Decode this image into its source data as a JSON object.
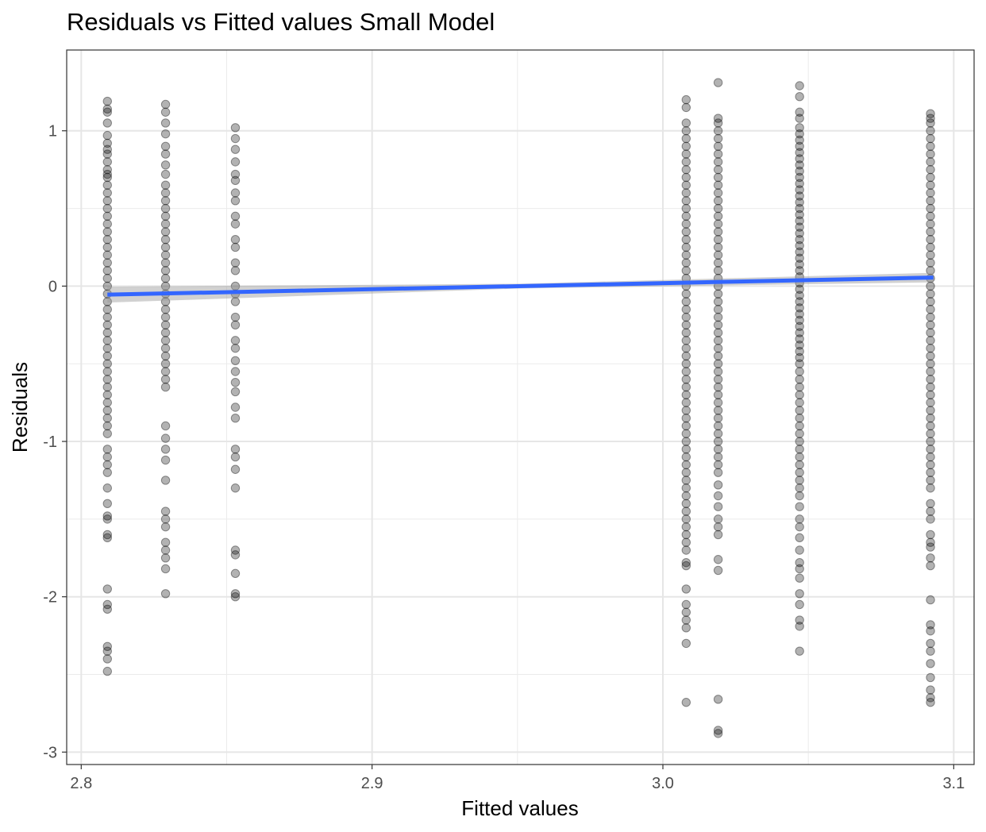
{
  "chart_data": {
    "type": "scatter",
    "title": "Residuals vs Fitted values Small Model",
    "xlabel": "Fitted values",
    "ylabel": "Residuals",
    "xlim": [
      2.795,
      3.107
    ],
    "ylim": [
      -3.08,
      1.52
    ],
    "x_ticks": [
      2.8,
      2.9,
      3.0,
      3.1
    ],
    "x_tick_labels": [
      "2.8",
      "2.9",
      "3.0",
      "3.1"
    ],
    "y_ticks": [
      -3,
      -2,
      -1,
      0,
      1
    ],
    "y_tick_labels": [
      "-3",
      "-2",
      "-1",
      "0",
      "1"
    ],
    "grid": true,
    "legend": "none",
    "point_color": "#000000",
    "point_alpha": 0.3,
    "fit_line_color": "#3366ff",
    "fit_band_color": "#999999",
    "fit_line": {
      "x": [
        2.809,
        3.093
      ],
      "y": [
        -0.055,
        0.055
      ]
    },
    "groups": [
      {
        "x": 2.809,
        "y": [
          1.19,
          1.14,
          1.12,
          1.05,
          0.97,
          0.92,
          0.88,
          0.85,
          0.8,
          0.75,
          0.72,
          0.7,
          0.65,
          0.6,
          0.55,
          0.5,
          0.45,
          0.4,
          0.35,
          0.3,
          0.25,
          0.2,
          0.15,
          0.1,
          0.05,
          0.0,
          -0.05,
          -0.1,
          -0.15,
          -0.2,
          -0.25,
          -0.3,
          -0.35,
          -0.4,
          -0.45,
          -0.5,
          -0.55,
          -0.6,
          -0.65,
          -0.7,
          -0.75,
          -0.8,
          -0.85,
          -0.9,
          -0.95,
          -1.05,
          -1.1,
          -1.15,
          -1.2,
          -1.3,
          -1.4,
          -1.48,
          -1.5,
          -1.6,
          -1.62,
          -1.95,
          -2.05,
          -2.08,
          -2.32,
          -2.35,
          -2.4,
          -2.48
        ]
      },
      {
        "x": 2.829,
        "y": [
          1.17,
          1.12,
          1.05,
          0.98,
          0.9,
          0.85,
          0.78,
          0.72,
          0.65,
          0.6,
          0.55,
          0.5,
          0.45,
          0.4,
          0.35,
          0.3,
          0.25,
          0.2,
          0.15,
          0.1,
          0.05,
          0.0,
          -0.05,
          -0.1,
          -0.15,
          -0.2,
          -0.25,
          -0.3,
          -0.35,
          -0.4,
          -0.45,
          -0.5,
          -0.55,
          -0.6,
          -0.65,
          -0.9,
          -0.98,
          -1.05,
          -1.12,
          -1.25,
          -1.45,
          -1.5,
          -1.55,
          -1.65,
          -1.7,
          -1.75,
          -1.82,
          -1.98
        ]
      },
      {
        "x": 2.853,
        "y": [
          1.02,
          0.95,
          0.88,
          0.8,
          0.72,
          0.68,
          0.6,
          0.55,
          0.45,
          0.4,
          0.3,
          0.25,
          0.15,
          0.1,
          0.0,
          -0.05,
          -0.1,
          -0.2,
          -0.25,
          -0.35,
          -0.4,
          -0.48,
          -0.55,
          -0.62,
          -0.68,
          -0.78,
          -0.85,
          -1.05,
          -1.1,
          -1.18,
          -1.3,
          -1.7,
          -1.73,
          -1.85,
          -1.98,
          -2.0
        ]
      },
      {
        "x": 3.008,
        "y": [
          1.2,
          1.15,
          1.05,
          1.0,
          0.95,
          0.9,
          0.85,
          0.8,
          0.75,
          0.7,
          0.65,
          0.6,
          0.55,
          0.5,
          0.45,
          0.4,
          0.35,
          0.3,
          0.25,
          0.2,
          0.15,
          0.1,
          0.05,
          0.0,
          -0.05,
          -0.1,
          -0.15,
          -0.2,
          -0.25,
          -0.3,
          -0.35,
          -0.4,
          -0.45,
          -0.5,
          -0.55,
          -0.6,
          -0.65,
          -0.7,
          -0.75,
          -0.8,
          -0.85,
          -0.9,
          -0.95,
          -1.0,
          -1.05,
          -1.1,
          -1.15,
          -1.2,
          -1.25,
          -1.3,
          -1.35,
          -1.4,
          -1.45,
          -1.5,
          -1.55,
          -1.6,
          -1.65,
          -1.7,
          -1.78,
          -1.8,
          -1.95,
          -2.05,
          -2.1,
          -2.15,
          -2.2,
          -2.3,
          -2.68
        ]
      },
      {
        "x": 3.019,
        "y": [
          1.31,
          1.08,
          1.05,
          1.0,
          0.95,
          0.9,
          0.85,
          0.8,
          0.75,
          0.7,
          0.65,
          0.6,
          0.55,
          0.5,
          0.45,
          0.4,
          0.35,
          0.3,
          0.25,
          0.2,
          0.15,
          0.1,
          0.05,
          0.0,
          -0.05,
          -0.1,
          -0.15,
          -0.2,
          -0.25,
          -0.3,
          -0.35,
          -0.4,
          -0.45,
          -0.5,
          -0.55,
          -0.6,
          -0.65,
          -0.7,
          -0.75,
          -0.8,
          -0.85,
          -0.9,
          -0.95,
          -1.0,
          -1.05,
          -1.1,
          -1.15,
          -1.2,
          -1.28,
          -1.35,
          -1.42,
          -1.5,
          -1.55,
          -1.6,
          -1.76,
          -1.83,
          -2.66,
          -2.86,
          -2.88
        ]
      },
      {
        "x": 3.047,
        "y": [
          1.29,
          1.22,
          1.12,
          1.08,
          1.02,
          0.98,
          0.94,
          0.9,
          0.86,
          0.82,
          0.78,
          0.74,
          0.7,
          0.66,
          0.62,
          0.58,
          0.54,
          0.5,
          0.46,
          0.42,
          0.38,
          0.34,
          0.3,
          0.26,
          0.22,
          0.18,
          0.14,
          0.1,
          0.06,
          0.02,
          -0.02,
          -0.06,
          -0.1,
          -0.14,
          -0.18,
          -0.22,
          -0.26,
          -0.3,
          -0.34,
          -0.38,
          -0.42,
          -0.46,
          -0.5,
          -0.55,
          -0.6,
          -0.65,
          -0.7,
          -0.75,
          -0.8,
          -0.85,
          -0.9,
          -0.95,
          -1.0,
          -1.05,
          -1.1,
          -1.15,
          -1.2,
          -1.25,
          -1.3,
          -1.35,
          -1.42,
          -1.5,
          -1.55,
          -1.62,
          -1.7,
          -1.78,
          -1.82,
          -1.88,
          -1.98,
          -2.05,
          -2.15,
          -2.19,
          -2.35
        ]
      },
      {
        "x": 3.092,
        "y": [
          1.11,
          1.08,
          1.05,
          1.0,
          0.95,
          0.9,
          0.85,
          0.8,
          0.75,
          0.7,
          0.65,
          0.6,
          0.55,
          0.5,
          0.45,
          0.4,
          0.35,
          0.3,
          0.25,
          0.2,
          0.15,
          0.1,
          0.05,
          0.0,
          -0.05,
          -0.1,
          -0.15,
          -0.2,
          -0.25,
          -0.3,
          -0.35,
          -0.4,
          -0.45,
          -0.5,
          -0.55,
          -0.6,
          -0.65,
          -0.7,
          -0.75,
          -0.8,
          -0.85,
          -0.9,
          -0.95,
          -1.0,
          -1.05,
          -1.1,
          -1.15,
          -1.2,
          -1.25,
          -1.3,
          -1.4,
          -1.45,
          -1.5,
          -1.6,
          -1.65,
          -1.68,
          -1.75,
          -1.8,
          -2.02,
          -2.18,
          -2.22,
          -2.3,
          -2.35,
          -2.43,
          -2.52,
          -2.6,
          -2.65,
          -2.68
        ]
      }
    ]
  }
}
